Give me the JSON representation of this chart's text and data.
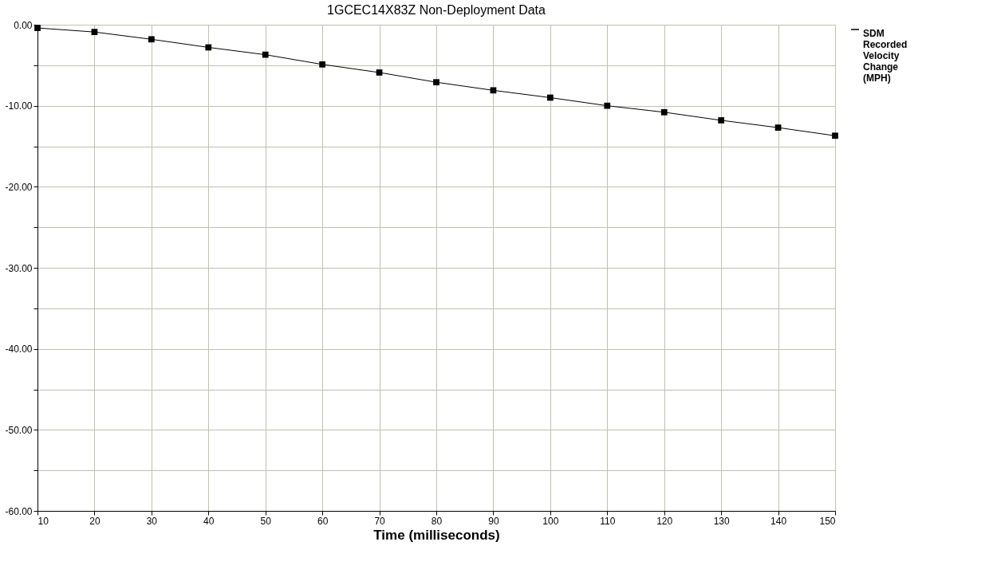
{
  "chart_data": {
    "type": "line",
    "title": "1GCEC14X83Z          Non-Deployment Data",
    "xlabel": "Time (milliseconds)",
    "x": [
      10,
      20,
      30,
      40,
      50,
      60,
      70,
      80,
      90,
      100,
      110,
      120,
      130,
      140,
      150
    ],
    "series": [
      {
        "name": "SDM Recorded Velocity Change (MPH)",
        "color": "#000000",
        "values": [
          -0.4,
          -0.9,
          -1.8,
          -2.8,
          -3.7,
          -4.9,
          -5.9,
          -7.1,
          -8.1,
          -9.0,
          -10.0,
          -10.8,
          -11.8,
          -12.7,
          -13.7
        ]
      }
    ],
    "xlim": [
      10,
      150
    ],
    "xticks": [
      10,
      20,
      30,
      40,
      50,
      60,
      70,
      80,
      90,
      100,
      110,
      120,
      130,
      140,
      150
    ],
    "ylim": [
      -60,
      0
    ],
    "yticks": [
      {
        "value": 0,
        "label": "0.00"
      },
      {
        "value": -5,
        "label": null
      },
      {
        "value": -10,
        "label": "-10.00"
      },
      {
        "value": -15,
        "label": null
      },
      {
        "value": -20,
        "label": "-20.00"
      },
      {
        "value": -25,
        "label": null
      },
      {
        "value": -30,
        "label": "-30.00"
      },
      {
        "value": -35,
        "label": null
      },
      {
        "value": -40,
        "label": "-40.00"
      },
      {
        "value": -45,
        "label": null
      },
      {
        "value": -50,
        "label": "-50.00"
      },
      {
        "value": -55,
        "label": null
      },
      {
        "value": -60,
        "label": "-60.00"
      }
    ],
    "grid": true,
    "legend": "top right",
    "marker": "square",
    "line_style": "solid"
  }
}
